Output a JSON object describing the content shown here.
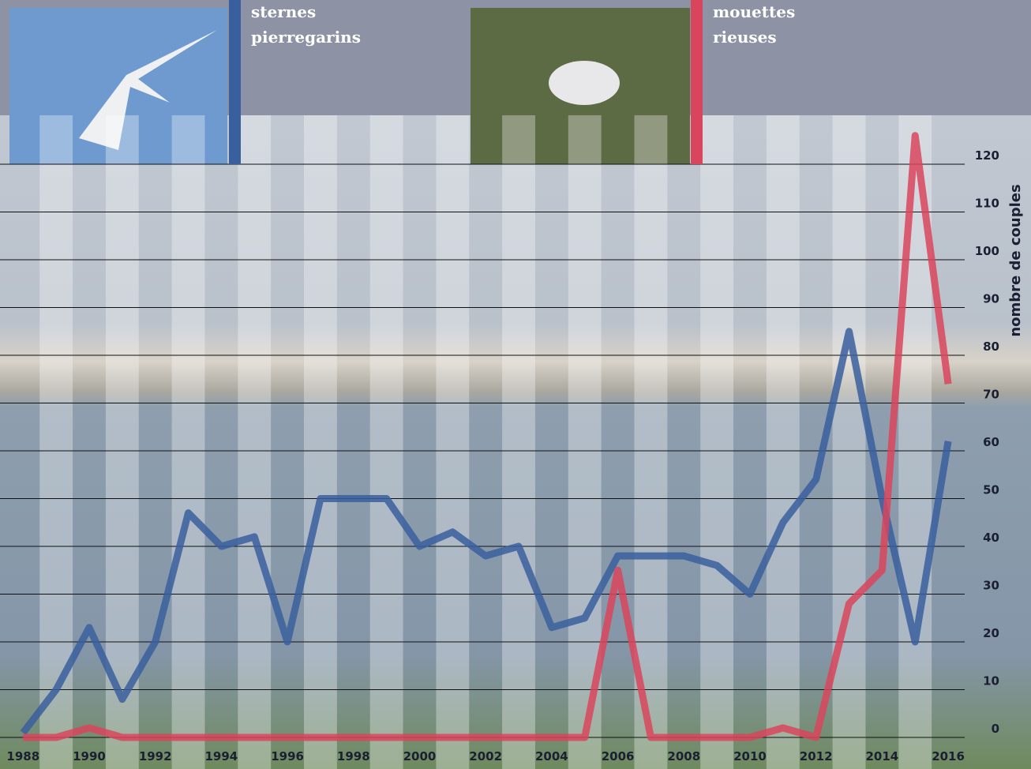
{
  "chart_data": {
    "type": "line",
    "y_axis_label": "nombre de couples",
    "x": [
      1988,
      1989,
      1990,
      1991,
      1992,
      1993,
      1994,
      1995,
      1996,
      1997,
      1998,
      1999,
      2000,
      2001,
      2002,
      2003,
      2004,
      2005,
      2006,
      2007,
      2008,
      2009,
      2010,
      2011,
      2012,
      2013,
      2014,
      2015,
      2016
    ],
    "series": [
      {
        "name": "sternes pierregarins",
        "color": "#3a5f9e",
        "values": [
          1,
          10,
          23,
          8,
          20,
          47,
          40,
          42,
          20,
          50,
          50,
          50,
          40,
          43,
          38,
          40,
          23,
          25,
          38,
          38,
          38,
          36,
          30,
          45,
          54,
          85,
          50,
          20,
          62
        ]
      },
      {
        "name": "mouettes rieuses",
        "color": "#d9455c",
        "values": [
          0,
          0,
          2,
          0,
          0,
          0,
          0,
          0,
          0,
          0,
          0,
          0,
          0,
          0,
          0,
          0,
          0,
          0,
          35,
          0,
          0,
          0,
          0,
          2,
          0,
          28,
          35,
          126,
          74
        ]
      }
    ],
    "xlim": [
      1987.3,
      2016.5
    ],
    "xticks": [
      1988,
      1990,
      1992,
      1994,
      1996,
      1998,
      2000,
      2002,
      2004,
      2006,
      2008,
      2010,
      2012,
      2014,
      2016
    ],
    "ylim": [
      0,
      120
    ],
    "yticks": [
      0,
      10,
      20,
      30,
      40,
      50,
      60,
      70,
      80,
      90,
      100,
      110,
      120
    ],
    "grid": true
  }
}
